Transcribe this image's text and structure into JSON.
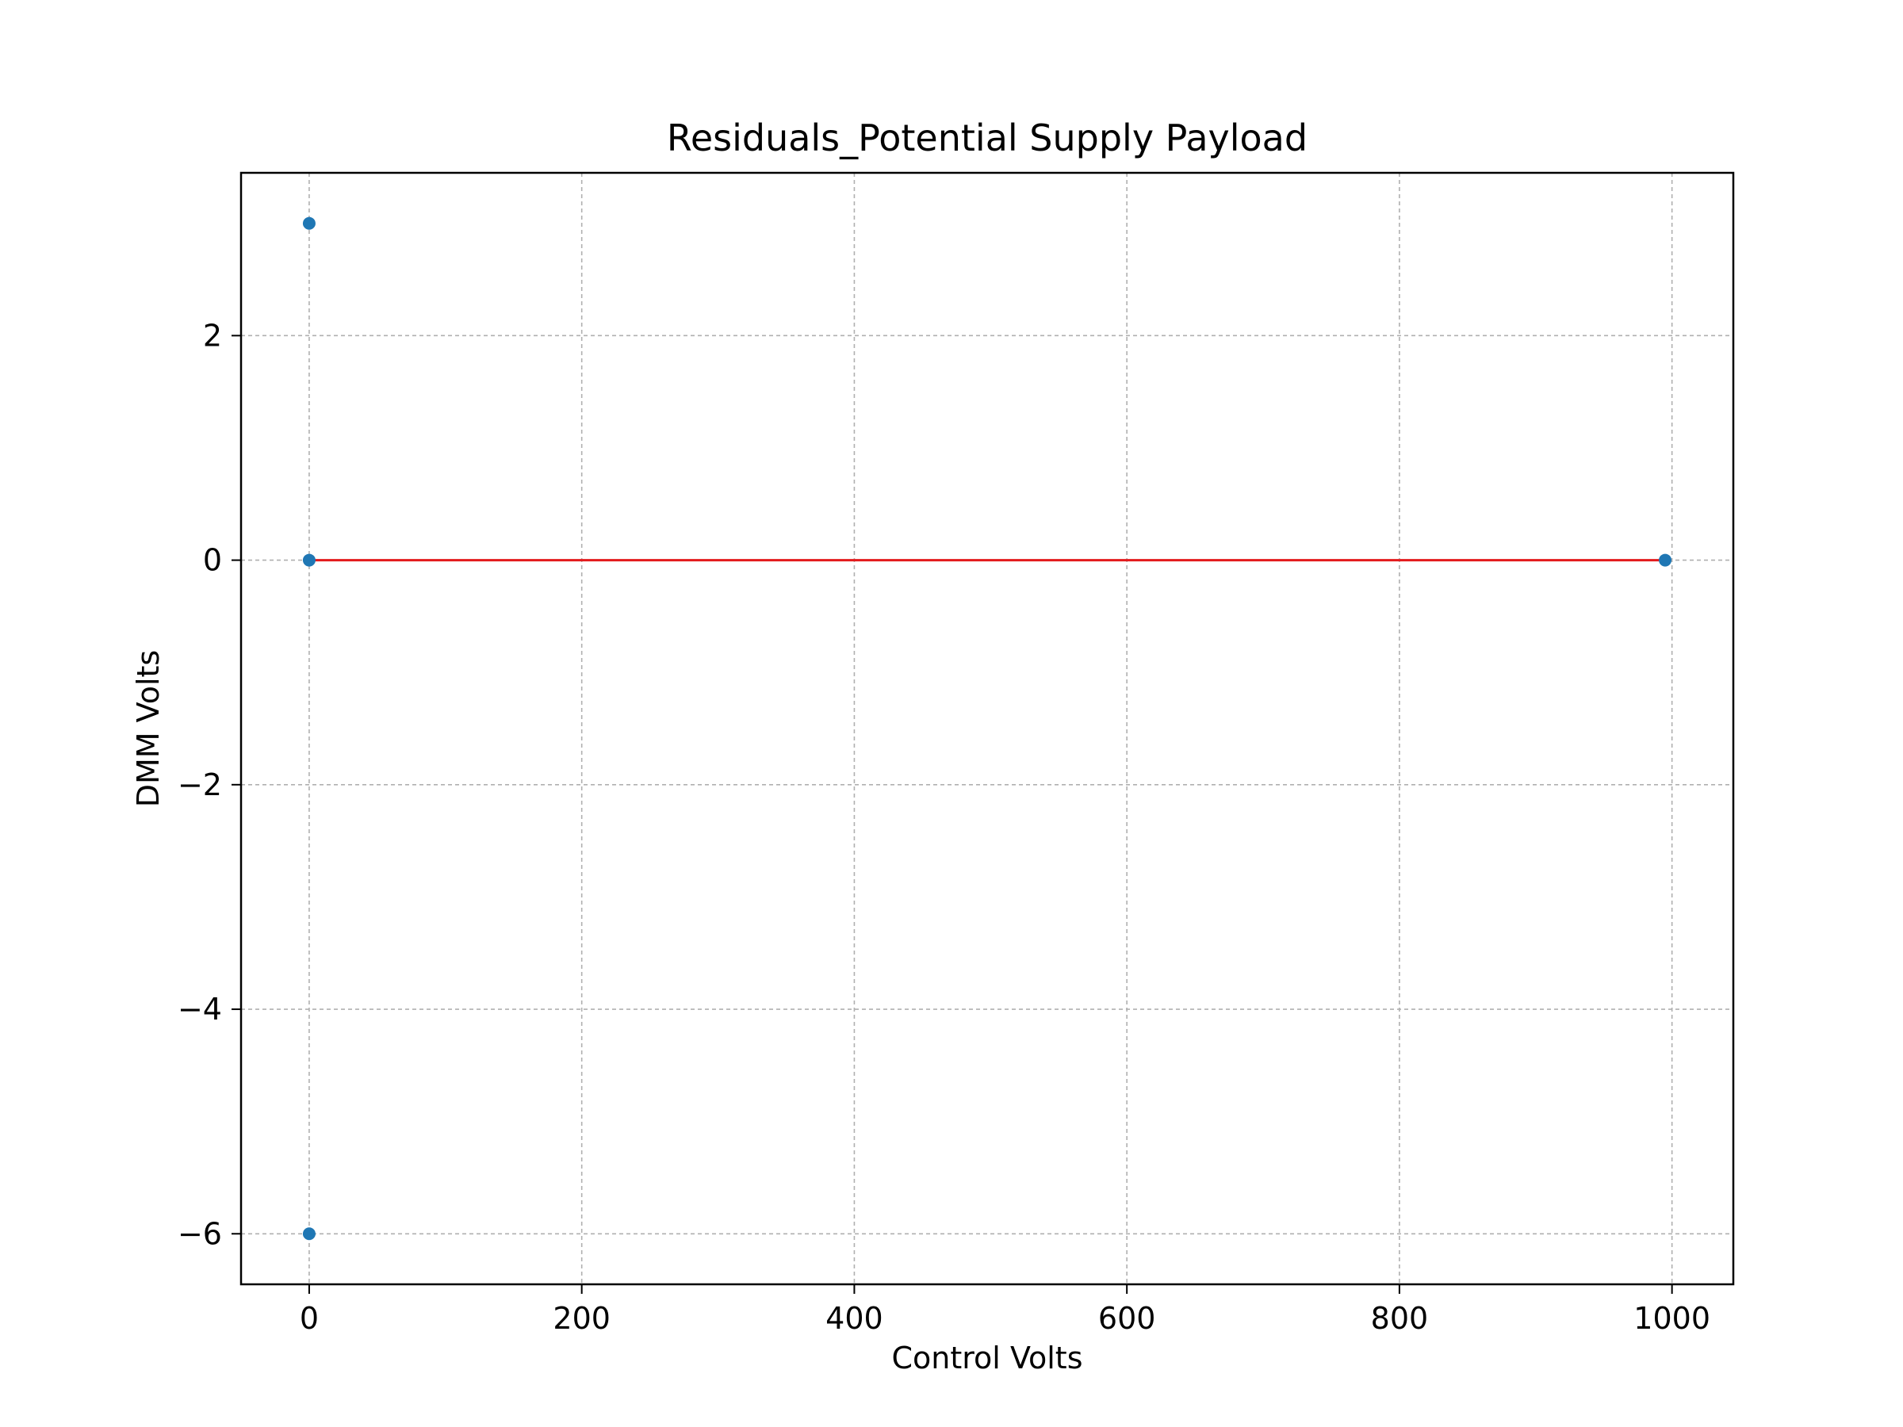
{
  "chart_data": {
    "type": "scatter",
    "title": "Residuals_Potential Supply Payload",
    "xlabel": "Control Volts",
    "ylabel": "DMM Volts",
    "xlim": [
      -50,
      1045
    ],
    "ylim": [
      -6.45,
      3.45
    ],
    "xticks": [
      0,
      200,
      400,
      600,
      800,
      1000
    ],
    "xtick_labels": [
      "0",
      "200",
      "400",
      "600",
      "800",
      "1000"
    ],
    "yticks": [
      -6,
      -4,
      -2,
      0,
      2
    ],
    "ytick_labels": [
      "−6",
      "−4",
      "−2",
      "0",
      "2"
    ],
    "grid": true,
    "legend": "none",
    "series": [
      {
        "type": "scatter",
        "x": [
          0,
          0,
          0,
          995
        ],
        "y": [
          3,
          0,
          -6,
          0
        ],
        "color": "#1f77b4"
      },
      {
        "type": "line",
        "x": [
          0,
          995
        ],
        "y": [
          0,
          0
        ],
        "color": "#e31a1c"
      }
    ]
  }
}
